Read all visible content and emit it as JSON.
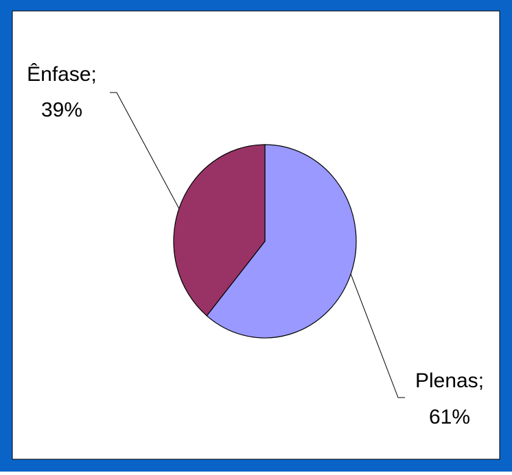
{
  "chart_data": {
    "type": "pie",
    "categories": [
      "Plenas",
      "Ênfase"
    ],
    "values": [
      61,
      39
    ],
    "value_labels": [
      "61%",
      "39%"
    ],
    "label_separator": ";",
    "colors": [
      "#9999ff",
      "#993366"
    ]
  }
}
